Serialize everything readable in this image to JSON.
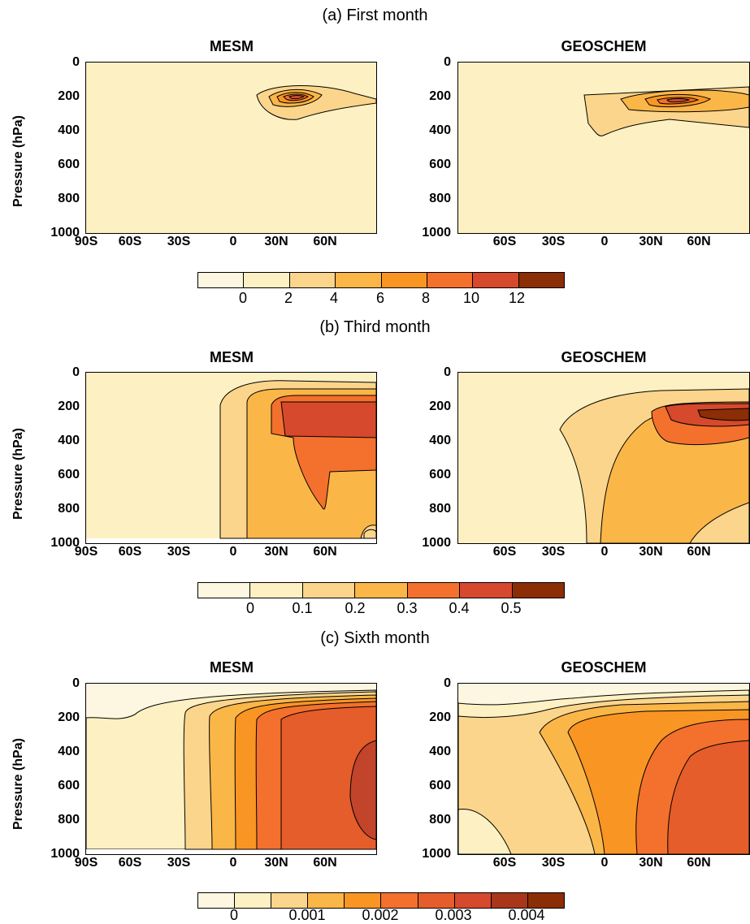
{
  "rows": [
    {
      "title": "(a) First month",
      "colorbar": {
        "colors": [
          "#fdf6e0",
          "#fdf0c2",
          "#fcd58c",
          "#fbb648",
          "#f99523",
          "#f4702d",
          "#d6492c",
          "#8b2d05"
        ],
        "labels": [
          "0",
          "2",
          "4",
          "6",
          "8",
          "10",
          "12"
        ]
      }
    },
    {
      "title": "(b) Third month",
      "colorbar": {
        "colors": [
          "#fdf6e0",
          "#fdf0c2",
          "#fcd58c",
          "#fbb648",
          "#f99523",
          "#f4702d",
          "#d6492c",
          "#8b2d05"
        ],
        "labels": [
          "0",
          "0.1",
          "0.2",
          "0.3",
          "0.4",
          "0.5"
        ]
      }
    },
    {
      "title": "(c) Sixth month",
      "colorbar": {
        "colors": [
          "#fdf6e0",
          "#fdf0c2",
          "#fcd58c",
          "#fbb648",
          "#f99523",
          "#f4702d",
          "#d6492c",
          "#8b2d05",
          "#7a2604",
          "#6a1f03"
        ],
        "labels": [
          "0",
          "0.001",
          "0.002",
          "0.003",
          "0.004"
        ]
      }
    }
  ],
  "panels": {
    "left_title": "MESM",
    "right_title": "GEOSCHEM",
    "ylabel": "Pressure (hPa)",
    "yticks": [
      "0",
      "200",
      "400",
      "600",
      "800",
      "1000"
    ],
    "xticks_left": [
      "90S",
      "60S",
      "30S",
      "0",
      "30N",
      "60N"
    ],
    "xticks_right": [
      "60S",
      "30S",
      "0",
      "30N",
      "60N"
    ]
  },
  "chart_data": [
    {
      "type": "heatmap",
      "title": "(a) First month",
      "panels": [
        "MESM",
        "GEOSCHEM"
      ],
      "ylabel": "Pressure (hPa)",
      "ylim": [
        1000,
        0
      ],
      "legend_levels": [
        0,
        2,
        4,
        6,
        8,
        10,
        12
      ]
    },
    {
      "type": "heatmap",
      "title": "(b) Third month",
      "panels": [
        "MESM",
        "GEOSCHEM"
      ],
      "ylabel": "Pressure (hPa)",
      "ylim": [
        1000,
        0
      ],
      "legend_levels": [
        0,
        0.1,
        0.2,
        0.3,
        0.4,
        0.5
      ]
    },
    {
      "type": "heatmap",
      "title": "(c) Sixth month",
      "panels": [
        "MESM",
        "GEOSCHEM"
      ],
      "ylabel": "Pressure (hPa)",
      "ylim": [
        1000,
        0
      ],
      "legend_levels": [
        0,
        0.001,
        0.002,
        0.003,
        0.004
      ]
    }
  ]
}
